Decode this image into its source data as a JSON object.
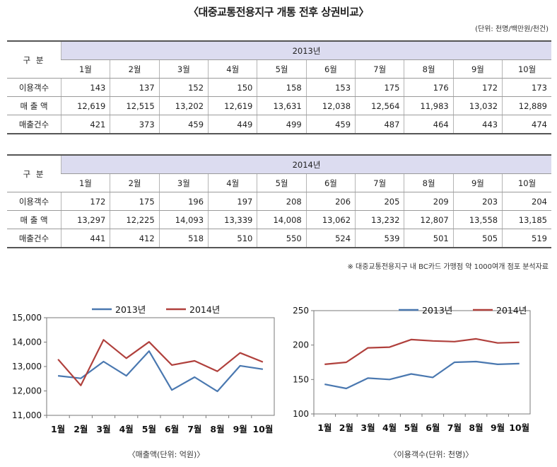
{
  "title": "〈대중교통전용지구 개통 전후 상권비교〉",
  "unit": "(단위: 천명/백만원/천건)",
  "tables": [
    {
      "header": "구 분",
      "year": "2013년",
      "months": [
        "1월",
        "2월",
        "3월",
        "4월",
        "5월",
        "6월",
        "7월",
        "8월",
        "9월",
        "10월"
      ],
      "rows": [
        {
          "label": "이용객수",
          "values": [
            "143",
            "137",
            "152",
            "150",
            "158",
            "153",
            "175",
            "176",
            "172",
            "173"
          ]
        },
        {
          "label": "매 출 액",
          "values": [
            "12,619",
            "12,515",
            "13,202",
            "12,619",
            "13,631",
            "12,038",
            "12,564",
            "11,983",
            "13,032",
            "12,889"
          ]
        },
        {
          "label": "매출건수",
          "values": [
            "421",
            "373",
            "459",
            "449",
            "499",
            "459",
            "487",
            "464",
            "443",
            "474"
          ]
        }
      ]
    },
    {
      "header": "구 분",
      "year": "2014년",
      "months": [
        "1월",
        "2월",
        "3월",
        "4월",
        "5월",
        "6월",
        "7월",
        "8월",
        "9월",
        "10월"
      ],
      "rows": [
        {
          "label": "이용객수",
          "values": [
            "172",
            "175",
            "196",
            "197",
            "208",
            "206",
            "205",
            "209",
            "203",
            "204"
          ]
        },
        {
          "label": "매 출 액",
          "values": [
            "13,297",
            "12,225",
            "14,093",
            "13,339",
            "14,008",
            "13,062",
            "13,232",
            "12,807",
            "13,558",
            "13,185"
          ]
        },
        {
          "label": "매출건수",
          "values": [
            "441",
            "412",
            "518",
            "510",
            "550",
            "524",
            "539",
            "501",
            "505",
            "519"
          ]
        }
      ]
    }
  ],
  "note": "※ 대중교통전용지구 내 BC카드 가맹점 약 1000여개 점포 분석자료",
  "colors": {
    "s2013": "#4a78b0",
    "s2014": "#b0403c",
    "axis": "#7a7a7a"
  },
  "chart_data": [
    {
      "type": "line",
      "title": "",
      "xlabel": "〈매출액(단위: 억원)〉",
      "ylabel": "",
      "categories": [
        "1월",
        "2월",
        "3월",
        "4월",
        "5월",
        "6월",
        "7월",
        "8월",
        "9월",
        "10월"
      ],
      "ylim": [
        11000,
        15000
      ],
      "yticks": [
        11000,
        12000,
        13000,
        14000,
        15000
      ],
      "ytick_labels": [
        "11,000",
        "12,000",
        "13,000",
        "14,000",
        "15,000"
      ],
      "legend": "top",
      "series": [
        {
          "name": "2013년",
          "values": [
            12619,
            12515,
            13202,
            12619,
            13631,
            12038,
            12564,
            11983,
            13032,
            12889
          ]
        },
        {
          "name": "2014년",
          "values": [
            13297,
            12225,
            14093,
            13339,
            14008,
            13062,
            13232,
            12807,
            13558,
            13185
          ]
        }
      ]
    },
    {
      "type": "line",
      "title": "",
      "xlabel": "〈이용객수(단위: 천명)〉",
      "ylabel": "",
      "categories": [
        "1월",
        "2월",
        "3월",
        "4월",
        "5월",
        "6월",
        "7월",
        "8월",
        "9월",
        "10월"
      ],
      "ylim": [
        100,
        250
      ],
      "yticks": [
        100,
        150,
        200,
        250
      ],
      "ytick_labels": [
        "100",
        "150",
        "200",
        "250"
      ],
      "legend": "top",
      "series": [
        {
          "name": "2013년",
          "values": [
            143,
            137,
            152,
            150,
            158,
            153,
            175,
            176,
            172,
            173
          ]
        },
        {
          "name": "2014년",
          "values": [
            172,
            175,
            196,
            197,
            208,
            206,
            205,
            209,
            203,
            204
          ]
        }
      ]
    }
  ]
}
